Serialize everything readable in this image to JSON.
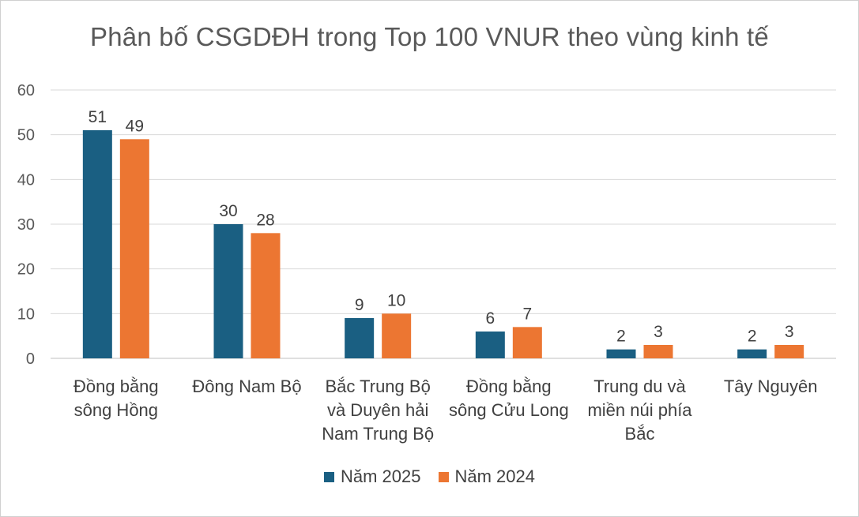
{
  "chart_data": {
    "type": "bar",
    "title": "Phân bố CSGDĐH trong Top 100 VNUR theo vùng kinh tế",
    "categories": [
      [
        "Đồng bằng",
        "sông Hồng"
      ],
      [
        "Đông Nam Bộ"
      ],
      [
        "Bắc Trung Bộ",
        "và Duyên hải",
        "Nam Trung Bộ"
      ],
      [
        "Đồng bằng",
        "sông Cửu Long"
      ],
      [
        "Trung du và",
        "miền núi phía",
        "Bắc"
      ],
      [
        "Tây Nguyên"
      ]
    ],
    "series": [
      {
        "name": "Năm 2025",
        "color": "#1a5f82",
        "values": [
          51,
          30,
          9,
          6,
          2,
          2
        ]
      },
      {
        "name": "Năm 2024",
        "color": "#ec7632",
        "values": [
          49,
          28,
          10,
          7,
          3,
          3
        ]
      }
    ],
    "ylim": [
      0,
      60
    ],
    "yticks": [
      0,
      10,
      20,
      30,
      40,
      50,
      60
    ],
    "grid": true,
    "data_labels": true,
    "legend_position": "bottom"
  }
}
